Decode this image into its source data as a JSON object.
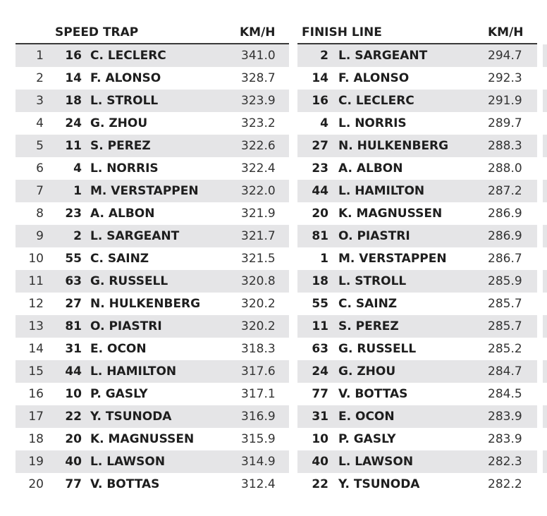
{
  "speed_trap": {
    "title": "SPEED TRAP",
    "unit": "KM/H",
    "rows": [
      {
        "pos": "1",
        "num": "16",
        "driver": "C. LECLERC",
        "speed": "341.0"
      },
      {
        "pos": "2",
        "num": "14",
        "driver": "F. ALONSO",
        "speed": "328.7"
      },
      {
        "pos": "3",
        "num": "18",
        "driver": "L. STROLL",
        "speed": "323.9"
      },
      {
        "pos": "4",
        "num": "24",
        "driver": "G. ZHOU",
        "speed": "323.2"
      },
      {
        "pos": "5",
        "num": "11",
        "driver": "S. PEREZ",
        "speed": "322.6"
      },
      {
        "pos": "6",
        "num": "4",
        "driver": "L. NORRIS",
        "speed": "322.4"
      },
      {
        "pos": "7",
        "num": "1",
        "driver": "M. VERSTAPPEN",
        "speed": "322.0"
      },
      {
        "pos": "8",
        "num": "23",
        "driver": "A. ALBON",
        "speed": "321.9"
      },
      {
        "pos": "9",
        "num": "2",
        "driver": "L. SARGEANT",
        "speed": "321.7"
      },
      {
        "pos": "10",
        "num": "55",
        "driver": "C. SAINZ",
        "speed": "321.5"
      },
      {
        "pos": "11",
        "num": "63",
        "driver": "G. RUSSELL",
        "speed": "320.8"
      },
      {
        "pos": "12",
        "num": "27",
        "driver": "N. HULKENBERG",
        "speed": "320.2"
      },
      {
        "pos": "13",
        "num": "81",
        "driver": "O. PIASTRI",
        "speed": "320.2"
      },
      {
        "pos": "14",
        "num": "31",
        "driver": "E. OCON",
        "speed": "318.3"
      },
      {
        "pos": "15",
        "num": "44",
        "driver": "L. HAMILTON",
        "speed": "317.6"
      },
      {
        "pos": "16",
        "num": "10",
        "driver": "P. GASLY",
        "speed": "317.1"
      },
      {
        "pos": "17",
        "num": "22",
        "driver": "Y. TSUNODA",
        "speed": "316.9"
      },
      {
        "pos": "18",
        "num": "20",
        "driver": "K. MAGNUSSEN",
        "speed": "315.9"
      },
      {
        "pos": "19",
        "num": "40",
        "driver": "L. LAWSON",
        "speed": "314.9"
      },
      {
        "pos": "20",
        "num": "77",
        "driver": "V. BOTTAS",
        "speed": "312.4"
      }
    ]
  },
  "finish_line": {
    "title": "FINISH LINE",
    "unit": "KM/H",
    "rows": [
      {
        "num": "2",
        "driver": "L. SARGEANT",
        "speed": "294.7"
      },
      {
        "num": "14",
        "driver": "F. ALONSO",
        "speed": "292.3"
      },
      {
        "num": "16",
        "driver": "C. LECLERC",
        "speed": "291.9"
      },
      {
        "num": "4",
        "driver": "L. NORRIS",
        "speed": "289.7"
      },
      {
        "num": "27",
        "driver": "N. HULKENBERG",
        "speed": "288.3"
      },
      {
        "num": "23",
        "driver": "A. ALBON",
        "speed": "288.0"
      },
      {
        "num": "44",
        "driver": "L. HAMILTON",
        "speed": "287.2"
      },
      {
        "num": "20",
        "driver": "K. MAGNUSSEN",
        "speed": "286.9"
      },
      {
        "num": "81",
        "driver": "O. PIASTRI",
        "speed": "286.9"
      },
      {
        "num": "1",
        "driver": "M. VERSTAPPEN",
        "speed": "286.7"
      },
      {
        "num": "18",
        "driver": "L. STROLL",
        "speed": "285.9"
      },
      {
        "num": "55",
        "driver": "C. SAINZ",
        "speed": "285.7"
      },
      {
        "num": "11",
        "driver": "S. PEREZ",
        "speed": "285.7"
      },
      {
        "num": "63",
        "driver": "G. RUSSELL",
        "speed": "285.2"
      },
      {
        "num": "24",
        "driver": "G. ZHOU",
        "speed": "284.7"
      },
      {
        "num": "77",
        "driver": "V. BOTTAS",
        "speed": "284.5"
      },
      {
        "num": "31",
        "driver": "E. OCON",
        "speed": "283.9"
      },
      {
        "num": "10",
        "driver": "P. GASLY",
        "speed": "283.9"
      },
      {
        "num": "40",
        "driver": "L. LAWSON",
        "speed": "282.3"
      },
      {
        "num": "22",
        "driver": "Y. TSUNODA",
        "speed": "282.2"
      }
    ]
  },
  "colors": {
    "row_shade": "#e5e5e7",
    "header_rule": "#3a3a3a",
    "text": "#1e1e1e"
  }
}
